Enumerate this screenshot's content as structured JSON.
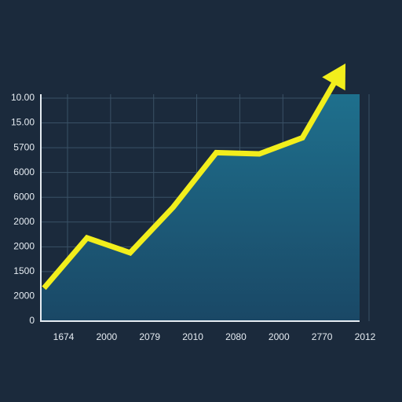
{
  "chart_data": {
    "type": "area",
    "categories": [
      "1674",
      "2000",
      "2079",
      "2010",
      "2080",
      "2000",
      "2770",
      "2012"
    ],
    "values": [
      1.33,
      3.36,
      2.76,
      4.6,
      6.8,
      6.75,
      7.4,
      10.4
    ],
    "color": "#f2ee1c",
    "fill": "#1d6a88",
    "ylim": [
      0,
      9
    ],
    "yticks": [
      0,
      {
        "value": 1,
        "label": "2000"
      },
      {
        "value": 2,
        "label": "1500"
      },
      {
        "value": 3,
        "label": "2000"
      },
      {
        "value": 4,
        "label": "2000"
      },
      {
        "value": 5,
        "label": "6000"
      },
      {
        "value": 6,
        "label": "6000"
      },
      {
        "value": 7,
        "label": "5700"
      },
      {
        "value": 8,
        "label": "15.00"
      },
      {
        "value": 9,
        "label": "10.00"
      }
    ],
    "grid": true
  }
}
